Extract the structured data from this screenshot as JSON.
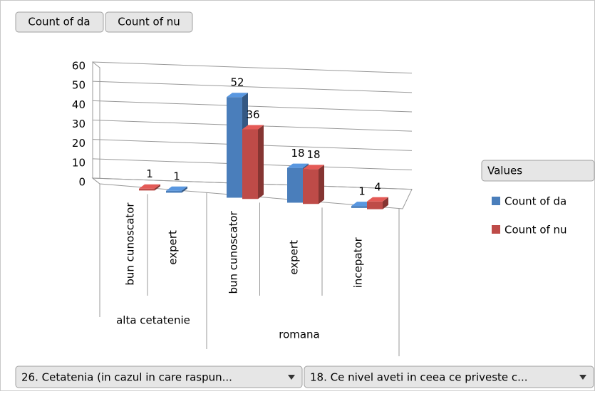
{
  "chart_data": {
    "type": "bar3d",
    "value_field_buttons": [
      "Count of da",
      "Count of nu"
    ],
    "axis_field_buttons": [
      "26. Cetatenia (in cazul in care raspun...",
      "18. Ce nivel aveti in ceea ce priveste c..."
    ],
    "legend_title": "Values",
    "category_groups": [
      {
        "name": "alta cetatenie",
        "categories": [
          "bun cunoscator",
          "expert"
        ]
      },
      {
        "name": "romana",
        "categories": [
          "bun cunoscator",
          "expert",
          "incepator"
        ]
      }
    ],
    "series": [
      {
        "name": "Count of da",
        "color": "#4a7ebb",
        "values": [
          null,
          1,
          52,
          18,
          1
        ]
      },
      {
        "name": "Count of nu",
        "color": "#be4b48",
        "values": [
          1,
          null,
          36,
          18,
          4
        ]
      }
    ],
    "ylim": [
      0,
      60
    ],
    "yticks": [
      0,
      10,
      20,
      30,
      40,
      50,
      60
    ],
    "grid": true,
    "legend": "right"
  }
}
